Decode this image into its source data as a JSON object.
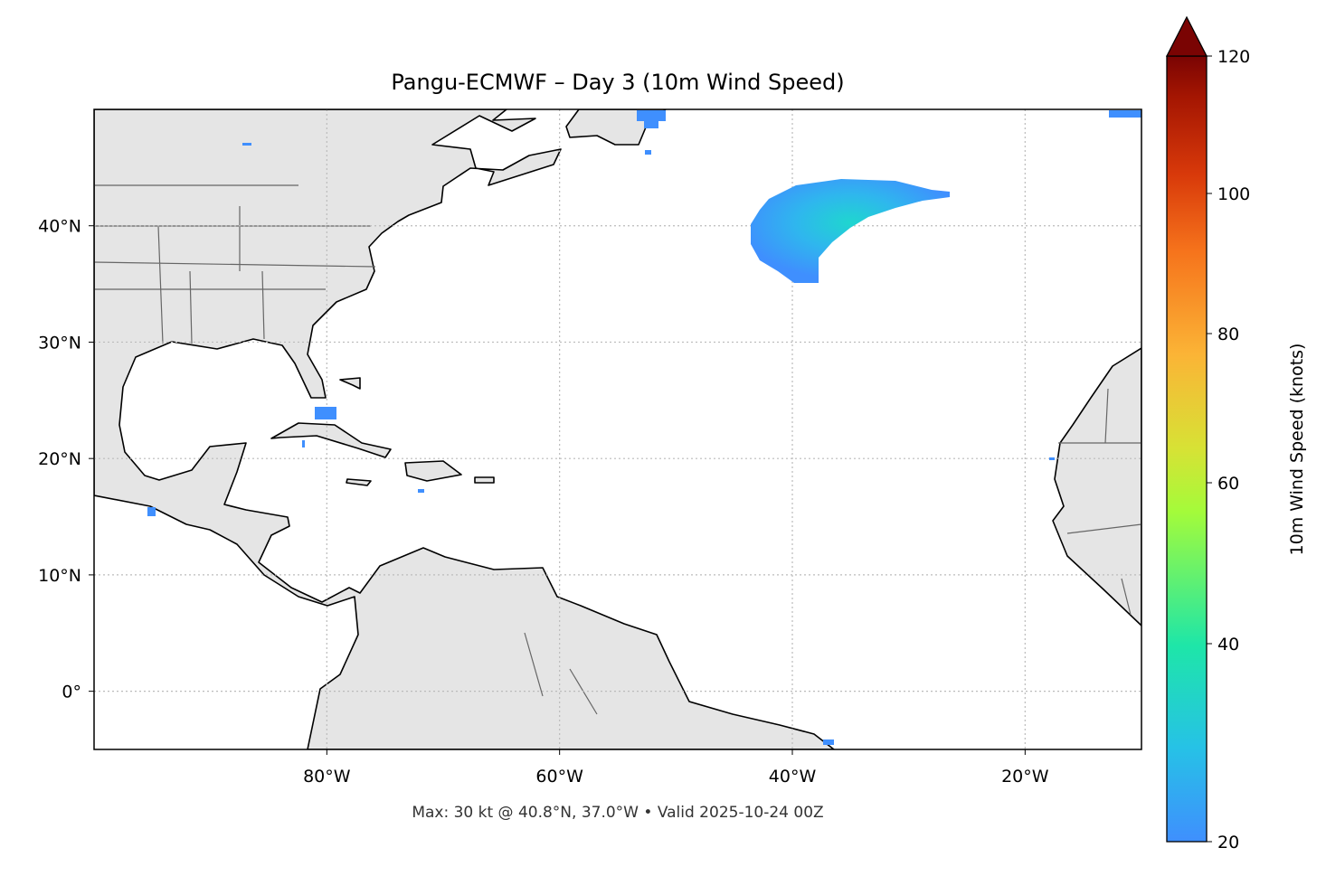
{
  "title": "Pangu-ECMWF – Day 3 (10m Wind Speed)",
  "footer": "Max: 30 kt @ 40.8°N, 37.0°W • Valid 2025-10-24 00Z",
  "map": {
    "lon_range": [
      -100,
      -10
    ],
    "lat_range": [
      -5,
      50
    ],
    "lon_ticks": [
      {
        "v": -80,
        "label": "80°W"
      },
      {
        "v": -60,
        "label": "60°W"
      },
      {
        "v": -40,
        "label": "40°W"
      },
      {
        "v": -20,
        "label": "20°W"
      }
    ],
    "lat_ticks": [
      {
        "v": 0,
        "label": "0°"
      },
      {
        "v": 10,
        "label": "10°N"
      },
      {
        "v": 20,
        "label": "20°N"
      },
      {
        "v": 30,
        "label": "30°N"
      },
      {
        "v": 40,
        "label": "40°N"
      }
    ],
    "max_wind_kt": 30,
    "max_location": {
      "lat": 40.8,
      "lon": -37.0
    }
  },
  "colorbar": {
    "label": "10m Wind Speed (knots)",
    "ticks": [
      "20",
      "40",
      "60",
      "80",
      "100",
      "120"
    ],
    "range": [
      20,
      120
    ],
    "colors": [
      "#3f8ffe",
      "#26c2e6",
      "#1ee6a8",
      "#a4fb3a",
      "#d7e235",
      "#fbb436",
      "#f6741c",
      "#d8390a",
      "#a31502",
      "#7a0403"
    ]
  }
}
